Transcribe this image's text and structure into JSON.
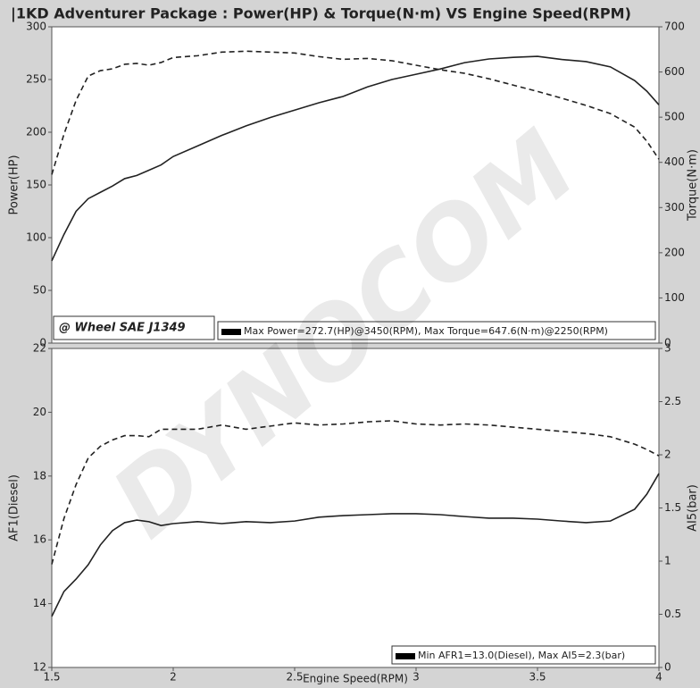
{
  "watermark": "DYNOCOM",
  "chart_data": [
    {
      "type": "line",
      "title": "|1KD Adventurer Package  : Power(HP) & Torque(N·m) VS Engine Speed(RPM)",
      "ylabel": "Power(HP)",
      "y2label": "Torque(N·m)",
      "note": "@ Wheel SAE J1349",
      "legend_text": "Max Power=272.7(HP)@3450(RPM), Max Torque=647.6(N·m)@2250(RPM)",
      "x": [
        1.5,
        1.55,
        1.6,
        1.65,
        1.7,
        1.75,
        1.8,
        1.85,
        1.9,
        1.95,
        2,
        2.1,
        2.2,
        2.3,
        2.4,
        2.5,
        2.6,
        2.7,
        2.8,
        2.9,
        3,
        3.1,
        3.2,
        3.3,
        3.4,
        3.5,
        3.6,
        3.7,
        3.8,
        3.9,
        3.95,
        4
      ],
      "xlim": [
        1.5,
        4
      ],
      "ylim": [
        0,
        300
      ],
      "yticks": [
        0,
        50,
        100,
        150,
        200,
        250,
        300
      ],
      "y2lim": [
        0,
        700
      ],
      "y2ticks": [
        0,
        100,
        200,
        300,
        400,
        500,
        600,
        700
      ],
      "series": [
        {
          "name": "Power",
          "color": "#222222",
          "dash": false,
          "values": [
            78,
            103,
            125,
            137,
            143,
            149,
            156,
            159,
            164,
            169,
            177,
            187,
            197,
            206,
            214,
            221,
            228,
            234,
            243,
            250,
            255,
            260,
            266,
            269.5,
            271,
            272,
            269,
            267,
            262,
            249,
            239,
            226
          ]
        },
        {
          "name": "Torque",
          "color": "#222222",
          "dash": true,
          "axis": "y2",
          "values": [
            373,
            462,
            537,
            591,
            603,
            607,
            617,
            619,
            615,
            621,
            632,
            636,
            644,
            646,
            644,
            642,
            634,
            628,
            630,
            625,
            615,
            605,
            597,
            585,
            571,
            557,
            542,
            526,
            508,
            478,
            447,
            407
          ]
        }
      ]
    },
    {
      "type": "line",
      "ylabel": "AF1(Diesel)",
      "y2label": "AI5(bar)",
      "xlabel": "Engine Speed(RPM)",
      "legend_text": "Min AFR1=13.0(Diesel), Max AI5=2.3(bar)",
      "x": [
        1.5,
        1.55,
        1.6,
        1.65,
        1.7,
        1.75,
        1.8,
        1.85,
        1.9,
        1.95,
        2,
        2.1,
        2.2,
        2.3,
        2.4,
        2.5,
        2.6,
        2.7,
        2.8,
        2.9,
        3,
        3.1,
        3.2,
        3.3,
        3.4,
        3.5,
        3.6,
        3.7,
        3.8,
        3.9,
        3.95,
        4
      ],
      "xlim": [
        1.5,
        4
      ],
      "xticks": [
        1.5,
        2,
        2.5,
        3,
        3.5,
        4
      ],
      "ylim": [
        12,
        22
      ],
      "yticks": [
        12,
        14,
        16,
        18,
        20,
        22
      ],
      "y2lim": [
        0,
        3
      ],
      "y2ticks": [
        0,
        0.5,
        1,
        1.5,
        2,
        2.5,
        3
      ],
      "series": [
        {
          "name": "AF1",
          "color": "#222222",
          "dash": false,
          "values": [
            13.6,
            14.38,
            14.77,
            15.22,
            15.84,
            16.29,
            16.54,
            16.62,
            16.57,
            16.45,
            16.51,
            16.57,
            16.51,
            16.57,
            16.54,
            16.59,
            16.71,
            16.76,
            16.79,
            16.82,
            16.82,
            16.79,
            16.73,
            16.68,
            16.68,
            16.65,
            16.59,
            16.54,
            16.59,
            16.96,
            17.43,
            18.08
          ]
        },
        {
          "name": "AI5",
          "color": "#222222",
          "dash": true,
          "axis": "y2",
          "values": [
            0.97,
            1.4,
            1.72,
            1.97,
            2.08,
            2.14,
            2.18,
            2.18,
            2.17,
            2.24,
            2.24,
            2.24,
            2.28,
            2.24,
            2.27,
            2.3,
            2.28,
            2.29,
            2.31,
            2.32,
            2.29,
            2.28,
            2.29,
            2.28,
            2.26,
            2.24,
            2.22,
            2.2,
            2.17,
            2.1,
            2.05,
            1.99
          ]
        }
      ]
    }
  ]
}
